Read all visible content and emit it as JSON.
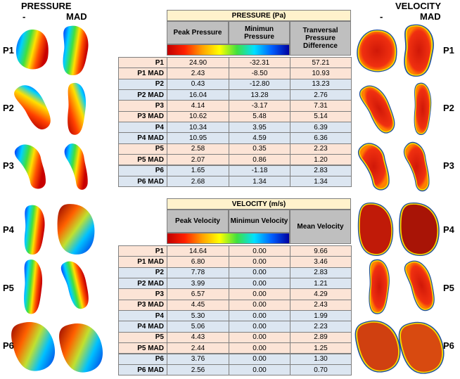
{
  "pressure_panel": {
    "title": "PRESSURE",
    "columns": [
      "-",
      "MAD"
    ],
    "rows": [
      "P1",
      "P2",
      "P3",
      "P4",
      "P5",
      "P6"
    ]
  },
  "velocity_panel": {
    "title": "VELOCITY",
    "columns": [
      "-",
      "MAD"
    ],
    "rows": [
      "P1",
      "P2",
      "P3",
      "P4",
      "P5",
      "P6"
    ]
  },
  "pressure_table": {
    "title": "PRESSURE (Pa)",
    "headers": [
      "Peak Pressure",
      "Minimun Pressure",
      "Tranversal Pressure Difference"
    ],
    "rows": [
      [
        "P1",
        "24.90",
        "-32.31",
        "57.21"
      ],
      [
        "P1 MAD",
        "2.43",
        "-8.50",
        "10.93"
      ],
      [
        "P2",
        "0.43",
        "-12.80",
        "13.23"
      ],
      [
        "P2 MAD",
        "16.04",
        "13.28",
        "2.76"
      ],
      [
        "P3",
        "4.14",
        "-3.17",
        "7.31"
      ],
      [
        "P3 MAD",
        "10.62",
        "5.48",
        "5.14"
      ],
      [
        "P4",
        "10.34",
        "3.95",
        "6.39"
      ],
      [
        "P4 MAD",
        "10.95",
        "4.59",
        "6.36"
      ],
      [
        "P5",
        "2.58",
        "0.35",
        "2.23"
      ],
      [
        "P5 MAD",
        "2.07",
        "0.86",
        "1.20"
      ],
      [
        "P6",
        "1.65",
        "-1.18",
        "2.83"
      ],
      [
        "P6 MAD",
        "2.68",
        "1.34",
        "1.34"
      ]
    ]
  },
  "velocity_table": {
    "title": "VELOCITY (m/s)",
    "headers": [
      "Peak Velocity",
      "Minimun Velocity",
      "Mean Velocity"
    ],
    "rows": [
      [
        "P1",
        "14.64",
        "0.00",
        "9.66"
      ],
      [
        "P1 MAD",
        "6.80",
        "0.00",
        "3.46"
      ],
      [
        "P2",
        "7.78",
        "0.00",
        "2.83"
      ],
      [
        "P2 MAD",
        "3.99",
        "0.00",
        "1.21"
      ],
      [
        "P3",
        "6.57",
        "0.00",
        "4.29"
      ],
      [
        "P3 MAD",
        "4.45",
        "0.00",
        "2.43"
      ],
      [
        "P4",
        "5.30",
        "0.00",
        "1.99"
      ],
      [
        "P4 MAD",
        "5.06",
        "0.00",
        "2.23"
      ],
      [
        "P5",
        "4.43",
        "0.00",
        "2.89"
      ],
      [
        "P5 MAD",
        "2.44",
        "0.00",
        "1.25"
      ],
      [
        "P6",
        "3.76",
        "0.00",
        "1.30"
      ],
      [
        "P6 MAD",
        "2.56",
        "0.00",
        "0.70"
      ]
    ]
  }
}
